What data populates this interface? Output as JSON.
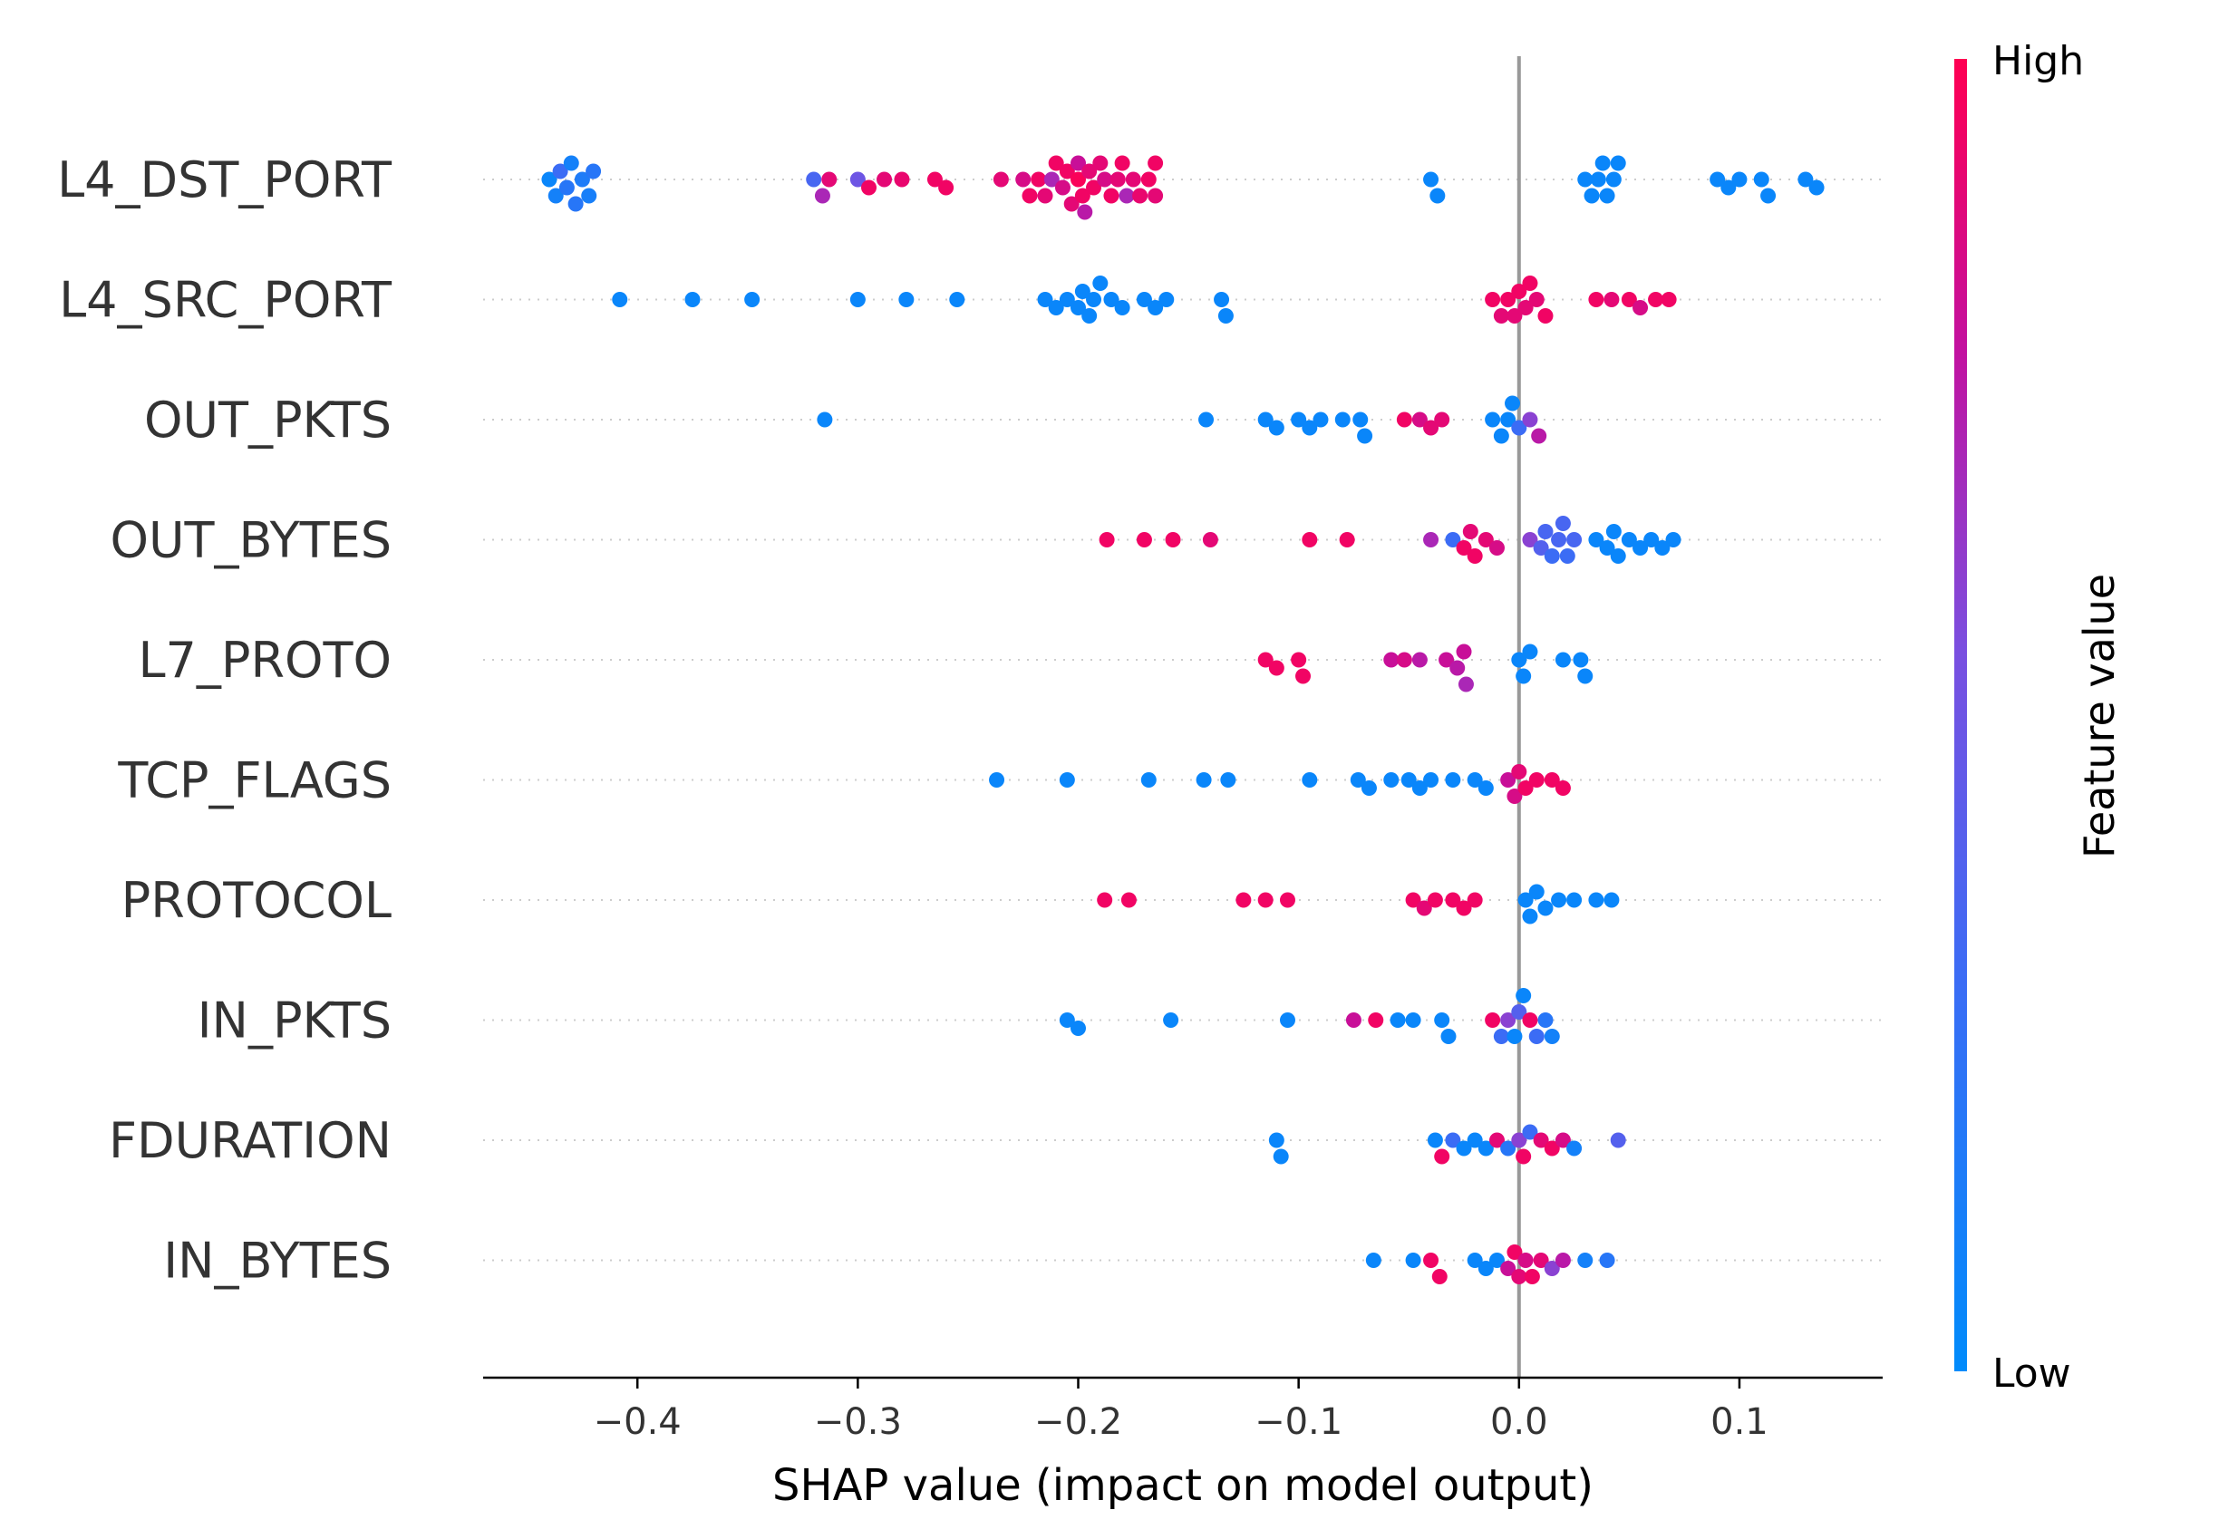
{
  "chart_data": {
    "type": "scatter",
    "subtype": "shap-beeswarm",
    "title": "",
    "xlabel": "SHAP value (impact on model output)",
    "xlim": [
      -0.47,
      0.165
    ],
    "xticks": [
      -0.4,
      -0.3,
      -0.2,
      -0.1,
      0.0,
      0.1
    ],
    "xtick_labels": [
      "−0.4",
      "−0.3",
      "−0.2",
      "−0.1",
      "0.0",
      "0.1"
    ],
    "reference_line": 0.0,
    "colorbar": {
      "title": "Feature value",
      "high_label": "High",
      "low_label": "Low",
      "low_color": "#008bfb",
      "high_color": "#ff0052"
    },
    "features": [
      {
        "name": "L4_DST_PORT",
        "points": [
          [
            -0.44,
            0.05
          ],
          [
            -0.437,
            0.1
          ],
          [
            -0.435,
            0.3
          ],
          [
            -0.432,
            0.2
          ],
          [
            -0.43,
            0.1
          ],
          [
            -0.428,
            0.2
          ],
          [
            -0.425,
            0.15
          ],
          [
            -0.422,
            0.12
          ],
          [
            -0.42,
            0.2
          ],
          [
            -0.32,
            0.35
          ],
          [
            -0.316,
            0.7
          ],
          [
            -0.313,
            0.9
          ],
          [
            -0.3,
            0.5
          ],
          [
            -0.295,
            0.95
          ],
          [
            -0.288,
            0.9
          ],
          [
            -0.28,
            0.92
          ],
          [
            -0.265,
            0.95
          ],
          [
            -0.26,
            0.95
          ],
          [
            -0.235,
            0.9
          ],
          [
            -0.225,
            0.85
          ],
          [
            -0.222,
            0.95
          ],
          [
            -0.218,
            0.95
          ],
          [
            -0.215,
            0.9
          ],
          [
            -0.212,
            0.7
          ],
          [
            -0.21,
            0.95
          ],
          [
            -0.207,
            0.85
          ],
          [
            -0.205,
            0.95
          ],
          [
            -0.203,
            0.9
          ],
          [
            -0.2,
            0.98
          ],
          [
            -0.2,
            0.8
          ],
          [
            -0.198,
            0.95
          ],
          [
            -0.197,
            0.75
          ],
          [
            -0.195,
            0.9
          ],
          [
            -0.193,
            0.95
          ],
          [
            -0.19,
            0.9
          ],
          [
            -0.188,
            0.85
          ],
          [
            -0.185,
            0.95
          ],
          [
            -0.182,
            0.9
          ],
          [
            -0.18,
            0.95
          ],
          [
            -0.178,
            0.7
          ],
          [
            -0.175,
            0.9
          ],
          [
            -0.172,
            0.92
          ],
          [
            -0.168,
            0.95
          ],
          [
            -0.165,
            0.9
          ],
          [
            -0.165,
            0.95
          ],
          [
            -0.04,
            0.05
          ],
          [
            -0.037,
            0.05
          ],
          [
            0.03,
            0.05
          ],
          [
            0.033,
            0.05
          ],
          [
            0.036,
            0.05
          ],
          [
            0.038,
            0.05
          ],
          [
            0.04,
            0.05
          ],
          [
            0.043,
            0.05
          ],
          [
            0.045,
            0.05
          ],
          [
            0.09,
            0.05
          ],
          [
            0.095,
            0.05
          ],
          [
            0.1,
            0.05
          ],
          [
            0.11,
            0.05
          ],
          [
            0.113,
            0.05
          ],
          [
            0.13,
            0.05
          ],
          [
            0.135,
            0.05
          ]
        ]
      },
      {
        "name": "L4_SRC_PORT",
        "points": [
          [
            -0.408,
            0.05
          ],
          [
            -0.375,
            0.05
          ],
          [
            -0.348,
            0.05
          ],
          [
            -0.3,
            0.05
          ],
          [
            -0.278,
            0.05
          ],
          [
            -0.255,
            0.05
          ],
          [
            -0.215,
            0.05
          ],
          [
            -0.21,
            0.05
          ],
          [
            -0.205,
            0.05
          ],
          [
            -0.2,
            0.05
          ],
          [
            -0.198,
            0.05
          ],
          [
            -0.195,
            0.05
          ],
          [
            -0.193,
            0.05
          ],
          [
            -0.19,
            0.05
          ],
          [
            -0.185,
            0.05
          ],
          [
            -0.18,
            0.05
          ],
          [
            -0.17,
            0.05
          ],
          [
            -0.165,
            0.05
          ],
          [
            -0.16,
            0.05
          ],
          [
            -0.135,
            0.05
          ],
          [
            -0.133,
            0.05
          ],
          [
            -0.012,
            0.95
          ],
          [
            -0.008,
            0.9
          ],
          [
            -0.005,
            0.95
          ],
          [
            -0.002,
            0.9
          ],
          [
            0.0,
            0.95
          ],
          [
            0.003,
            0.9
          ],
          [
            0.005,
            0.95
          ],
          [
            0.008,
            0.9
          ],
          [
            0.012,
            0.95
          ],
          [
            0.035,
            0.95
          ],
          [
            0.042,
            0.9
          ],
          [
            0.05,
            0.95
          ],
          [
            0.055,
            0.85
          ],
          [
            0.062,
            0.95
          ],
          [
            0.068,
            0.95
          ]
        ]
      },
      {
        "name": "OUT_PKTS",
        "points": [
          [
            -0.315,
            0.05
          ],
          [
            -0.142,
            0.05
          ],
          [
            -0.115,
            0.05
          ],
          [
            -0.11,
            0.05
          ],
          [
            -0.1,
            0.05
          ],
          [
            -0.095,
            0.05
          ],
          [
            -0.09,
            0.05
          ],
          [
            -0.08,
            0.05
          ],
          [
            -0.072,
            0.05
          ],
          [
            -0.07,
            0.05
          ],
          [
            -0.052,
            0.95
          ],
          [
            -0.045,
            0.85
          ],
          [
            -0.04,
            0.9
          ],
          [
            -0.035,
            0.9
          ],
          [
            -0.012,
            0.05
          ],
          [
            -0.008,
            0.05
          ],
          [
            -0.005,
            0.05
          ],
          [
            -0.003,
            0.05
          ],
          [
            0.0,
            0.3
          ],
          [
            0.005,
            0.6
          ],
          [
            0.009,
            0.75
          ]
        ]
      },
      {
        "name": "OUT_BYTES",
        "points": [
          [
            -0.187,
            0.95
          ],
          [
            -0.17,
            0.95
          ],
          [
            -0.157,
            0.95
          ],
          [
            -0.14,
            0.9
          ],
          [
            -0.095,
            0.95
          ],
          [
            -0.078,
            0.95
          ],
          [
            -0.04,
            0.7
          ],
          [
            -0.03,
            0.3
          ],
          [
            -0.025,
            0.95
          ],
          [
            -0.022,
            0.9
          ],
          [
            -0.02,
            0.95
          ],
          [
            -0.015,
            0.9
          ],
          [
            -0.01,
            0.85
          ],
          [
            0.005,
            0.6
          ],
          [
            0.01,
            0.4
          ],
          [
            0.012,
            0.35
          ],
          [
            0.015,
            0.3
          ],
          [
            0.018,
            0.35
          ],
          [
            0.02,
            0.35
          ],
          [
            0.022,
            0.3
          ],
          [
            0.025,
            0.35
          ],
          [
            0.035,
            0.05
          ],
          [
            0.04,
            0.05
          ],
          [
            0.043,
            0.05
          ],
          [
            0.045,
            0.05
          ],
          [
            0.05,
            0.05
          ],
          [
            0.055,
            0.05
          ],
          [
            0.06,
            0.05
          ],
          [
            0.065,
            0.05
          ],
          [
            0.07,
            0.05
          ]
        ]
      },
      {
        "name": "L7_PROTO",
        "points": [
          [
            -0.115,
            0.95
          ],
          [
            -0.11,
            0.95
          ],
          [
            -0.1,
            0.95
          ],
          [
            -0.098,
            0.95
          ],
          [
            -0.058,
            0.8
          ],
          [
            -0.052,
            0.85
          ],
          [
            -0.045,
            0.75
          ],
          [
            -0.033,
            0.8
          ],
          [
            -0.028,
            0.75
          ],
          [
            -0.025,
            0.8
          ],
          [
            -0.024,
            0.7
          ],
          [
            0.0,
            0.05
          ],
          [
            0.002,
            0.05
          ],
          [
            0.005,
            0.05
          ],
          [
            0.02,
            0.05
          ],
          [
            0.028,
            0.05
          ],
          [
            0.03,
            0.05
          ]
        ]
      },
      {
        "name": "TCP_FLAGS",
        "points": [
          [
            -0.237,
            0.05
          ],
          [
            -0.205,
            0.05
          ],
          [
            -0.168,
            0.05
          ],
          [
            -0.143,
            0.05
          ],
          [
            -0.132,
            0.05
          ],
          [
            -0.095,
            0.05
          ],
          [
            -0.073,
            0.05
          ],
          [
            -0.068,
            0.05
          ],
          [
            -0.058,
            0.05
          ],
          [
            -0.05,
            0.05
          ],
          [
            -0.045,
            0.05
          ],
          [
            -0.04,
            0.05
          ],
          [
            -0.03,
            0.05
          ],
          [
            -0.02,
            0.05
          ],
          [
            -0.015,
            0.05
          ],
          [
            -0.005,
            0.8
          ],
          [
            -0.002,
            0.85
          ],
          [
            0.0,
            0.9
          ],
          [
            0.003,
            0.95
          ],
          [
            0.008,
            0.95
          ],
          [
            0.015,
            0.95
          ],
          [
            0.02,
            0.95
          ]
        ]
      },
      {
        "name": "PROTOCOL",
        "points": [
          [
            -0.188,
            0.95
          ],
          [
            -0.177,
            0.95
          ],
          [
            -0.125,
            0.95
          ],
          [
            -0.115,
            0.95
          ],
          [
            -0.105,
            0.95
          ],
          [
            -0.048,
            0.95
          ],
          [
            -0.043,
            0.9
          ],
          [
            -0.038,
            0.95
          ],
          [
            -0.03,
            0.95
          ],
          [
            -0.025,
            0.95
          ],
          [
            -0.02,
            0.95
          ],
          [
            0.003,
            0.05
          ],
          [
            0.005,
            0.05
          ],
          [
            0.008,
            0.05
          ],
          [
            0.012,
            0.05
          ],
          [
            0.018,
            0.05
          ],
          [
            0.025,
            0.05
          ],
          [
            0.035,
            0.05
          ],
          [
            0.042,
            0.05
          ]
        ]
      },
      {
        "name": "IN_PKTS",
        "points": [
          [
            -0.205,
            0.05
          ],
          [
            -0.2,
            0.05
          ],
          [
            -0.158,
            0.05
          ],
          [
            -0.105,
            0.05
          ],
          [
            -0.075,
            0.8
          ],
          [
            -0.065,
            0.95
          ],
          [
            -0.055,
            0.05
          ],
          [
            -0.048,
            0.05
          ],
          [
            -0.035,
            0.05
          ],
          [
            -0.032,
            0.05
          ],
          [
            -0.012,
            0.95
          ],
          [
            -0.008,
            0.3
          ],
          [
            -0.005,
            0.6
          ],
          [
            -0.002,
            0.05
          ],
          [
            0.0,
            0.4
          ],
          [
            0.002,
            0.05
          ],
          [
            0.005,
            0.95
          ],
          [
            0.008,
            0.3
          ],
          [
            0.012,
            0.2
          ],
          [
            0.015,
            0.1
          ]
        ]
      },
      {
        "name": "FDURATION",
        "points": [
          [
            -0.11,
            0.05
          ],
          [
            -0.108,
            0.05
          ],
          [
            -0.038,
            0.05
          ],
          [
            -0.035,
            0.95
          ],
          [
            -0.03,
            0.3
          ],
          [
            -0.025,
            0.05
          ],
          [
            -0.02,
            0.05
          ],
          [
            -0.015,
            0.05
          ],
          [
            -0.01,
            0.9
          ],
          [
            -0.005,
            0.2
          ],
          [
            0.0,
            0.6
          ],
          [
            0.002,
            0.95
          ],
          [
            0.005,
            0.3
          ],
          [
            0.01,
            0.9
          ],
          [
            0.015,
            0.95
          ],
          [
            0.02,
            0.85
          ],
          [
            0.025,
            0.1
          ],
          [
            0.045,
            0.4
          ]
        ]
      },
      {
        "name": "IN_BYTES",
        "points": [
          [
            -0.066,
            0.05
          ],
          [
            -0.048,
            0.05
          ],
          [
            -0.04,
            0.95
          ],
          [
            -0.036,
            0.95
          ],
          [
            -0.02,
            0.05
          ],
          [
            -0.015,
            0.05
          ],
          [
            -0.01,
            0.05
          ],
          [
            -0.005,
            0.8
          ],
          [
            -0.002,
            0.95
          ],
          [
            0.0,
            0.9
          ],
          [
            0.003,
            0.85
          ],
          [
            0.006,
            0.95
          ],
          [
            0.01,
            0.9
          ],
          [
            0.015,
            0.6
          ],
          [
            0.02,
            0.75
          ],
          [
            0.03,
            0.1
          ],
          [
            0.04,
            0.2
          ]
        ]
      }
    ]
  }
}
